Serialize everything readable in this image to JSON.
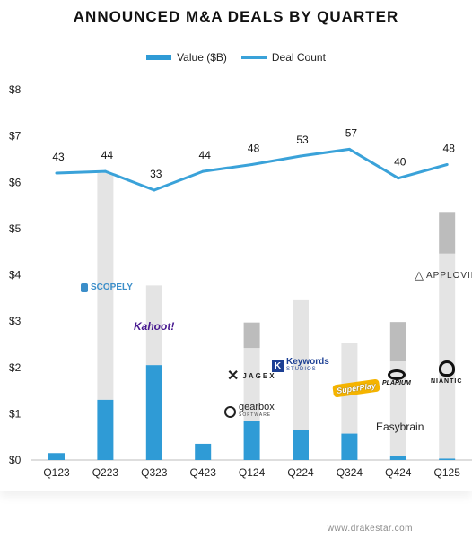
{
  "title": "ANNOUNCED M&A DEALS BY QUARTER",
  "legend": {
    "bar_label": "Value ($B)",
    "line_label": "Deal Count"
  },
  "footer": "www.drakestar.com",
  "colors": {
    "bar": "#2f9bd6",
    "bar_light": "#e4e4e4",
    "bar_dark": "#bcbcbc",
    "line": "#3aa2d9"
  },
  "logos": {
    "scopely": "SCOPELY",
    "kahoot": "Kahoot!",
    "jagex": "JAGEX",
    "keywords": "Keywords",
    "keywords_sub": "STUDIOS",
    "gearbox": "gearbox",
    "gearbox_sub": "SOFTWARE",
    "superplay": "SuperPlay",
    "plarium": "PLARIUM",
    "easybrain": "Easybrain",
    "niantic": "NIANTIC",
    "applovin": "APPLOVIN"
  },
  "chart_data": {
    "type": "bar",
    "title": "ANNOUNCED M&A DEALS BY QUARTER",
    "categories": [
      "Q123",
      "Q223",
      "Q323",
      "Q423",
      "Q124",
      "Q224",
      "Q324",
      "Q424",
      "Q125"
    ],
    "y_ticks": [
      "$0",
      "$1",
      "$2",
      "$3",
      "$4",
      "$5",
      "$6",
      "$7",
      "$8"
    ],
    "ylim": [
      0,
      8
    ],
    "grid": false,
    "legend_position": "top-center",
    "series": [
      {
        "name": "Value ($B)",
        "type": "stacked-bar",
        "values": [
          0.15,
          1.3,
          2.05,
          0.35,
          0.85,
          0.65,
          0.57,
          0.08,
          0.03
        ],
        "highlighted_deal_values": [
          0,
          4.9,
          1.72,
          0,
          1.57,
          2.8,
          1.95,
          2.05,
          4.43
        ],
        "secondary_deal_values": [
          0,
          0,
          0,
          0,
          0.55,
          0,
          0,
          0.85,
          0.9
        ]
      },
      {
        "name": "Deal Count",
        "type": "line",
        "values": [
          43,
          44,
          33,
          44,
          48,
          53,
          57,
          40,
          48
        ]
      }
    ]
  }
}
